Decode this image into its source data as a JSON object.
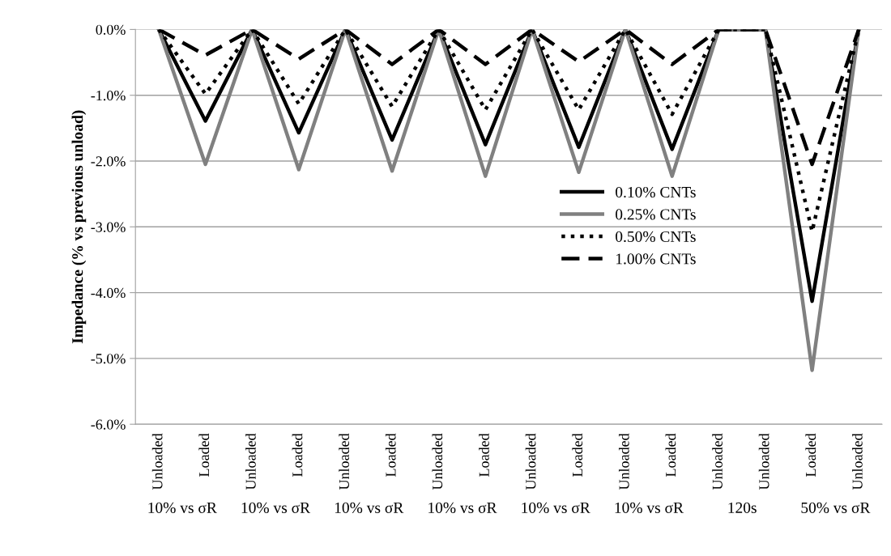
{
  "chart_data": {
    "type": "line",
    "ylabel": "Impedance (% vs previous unload)",
    "categories": [
      "Unloaded",
      "Loaded",
      "Unloaded",
      "Loaded",
      "Unloaded",
      "Loaded",
      "Unloaded",
      "Loaded",
      "Unloaded",
      "Loaded",
      "Unloaded",
      "Loaded",
      "Unloaded",
      "Unloaded",
      "Loaded",
      "Unloaded"
    ],
    "annotations": [
      "10% vs σR",
      "10% vs σR",
      "10% vs σR",
      "10% vs σR",
      "10% vs σR",
      "10% vs σR",
      "120s",
      "50% vs σR"
    ],
    "series": [
      {
        "name": "0.10% CNTs",
        "color": "#000000",
        "line_style": "solid",
        "values": [
          0,
          -1.39,
          0,
          -1.57,
          0,
          -1.68,
          0,
          -1.75,
          0,
          -1.79,
          0,
          -1.82,
          0,
          0,
          -4.13,
          0
        ]
      },
      {
        "name": "0.25% CNTs",
        "color": "#808080",
        "line_style": "solid",
        "values": [
          0,
          -2.05,
          0,
          -2.13,
          0,
          -2.15,
          0,
          -2.23,
          0,
          -2.17,
          0,
          -2.23,
          0,
          0,
          -5.18,
          0
        ]
      },
      {
        "name": "0.50% CNTs",
        "color": "#000000",
        "line_style": "dotted",
        "values": [
          0,
          -0.98,
          0,
          -1.13,
          0,
          -1.17,
          0,
          -1.22,
          0,
          -1.22,
          0,
          -1.29,
          0,
          0,
          -3.07,
          0
        ]
      },
      {
        "name": "1.00% CNTs",
        "color": "#000000",
        "line_style": "dashed",
        "values": [
          0,
          -0.39,
          0,
          -0.45,
          0,
          -0.53,
          0,
          -0.53,
          0,
          -0.49,
          0,
          -0.53,
          0,
          0,
          -2.05,
          0
        ]
      }
    ],
    "ylim": [
      -6,
      0
    ],
    "yticks": [
      {
        "value": -6,
        "label": "-6.0%"
      },
      {
        "value": -5,
        "label": "-5.0%"
      },
      {
        "value": -4,
        "label": "-4.0%"
      },
      {
        "value": -3,
        "label": "-3.0%"
      },
      {
        "value": -2,
        "label": "-2.0%"
      },
      {
        "value": -1,
        "label": "-1.0%"
      },
      {
        "value": 0,
        "label": "0.0%"
      }
    ],
    "grid": "y",
    "legend": "right",
    "marker": "none"
  }
}
